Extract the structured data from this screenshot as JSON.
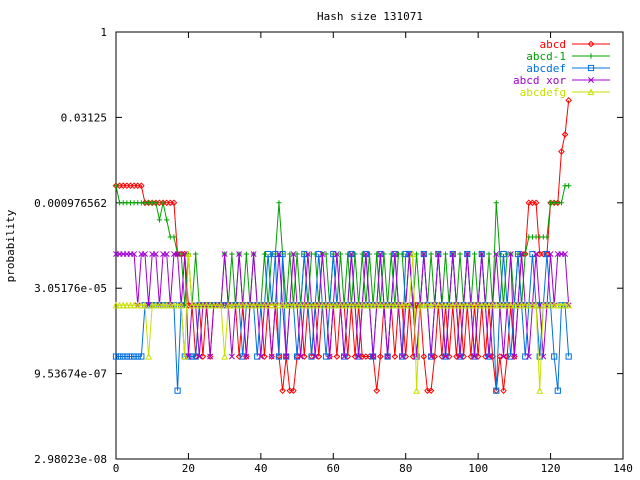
{
  "chart_data": {
    "type": "line",
    "title": "Hash size 131071",
    "xlabel": "",
    "ylabel": "probability",
    "xlim": [
      0,
      140
    ],
    "ylim_log2": [
      -25,
      0
    ],
    "y_scale": "log2",
    "xticks": [
      0,
      20,
      40,
      60,
      80,
      100,
      120,
      140
    ],
    "yticks": [
      {
        "label": "1",
        "log2": 0
      },
      {
        "label": "0.03125",
        "log2": -5
      },
      {
        "label": "0.000976562",
        "log2": -10
      },
      {
        "label": "3.05176e-05",
        "log2": -15
      },
      {
        "label": "9.53674e-07",
        "log2": -20
      },
      {
        "label": "2.98023e-08",
        "log2": -25
      }
    ],
    "grid": false,
    "legend": "top-right",
    "series": [
      {
        "name": "abcd",
        "color": "#ff0000",
        "marker": "diamond",
        "x": [
          0,
          1,
          2,
          3,
          4,
          5,
          6,
          7,
          8,
          9,
          10,
          11,
          12,
          13,
          14,
          15,
          16,
          17,
          18,
          19,
          20,
          21,
          22,
          23,
          24,
          25,
          26,
          27,
          28,
          29,
          30,
          31,
          32,
          33,
          34,
          35,
          36,
          37,
          38,
          39,
          40,
          41,
          42,
          43,
          44,
          45,
          46,
          47,
          48,
          49,
          50,
          51,
          52,
          53,
          54,
          55,
          56,
          57,
          58,
          59,
          60,
          61,
          62,
          63,
          64,
          65,
          66,
          67,
          68,
          69,
          70,
          71,
          72,
          73,
          74,
          75,
          76,
          77,
          78,
          79,
          80,
          81,
          82,
          83,
          84,
          85,
          86,
          87,
          88,
          89,
          90,
          91,
          92,
          93,
          94,
          95,
          96,
          97,
          98,
          99,
          100,
          101,
          102,
          103,
          104,
          105,
          106,
          107,
          108,
          109,
          110,
          111,
          112,
          113,
          114,
          115,
          116,
          117,
          118,
          119,
          120,
          121,
          122,
          123,
          124,
          125
        ],
        "log2": [
          -9,
          -9,
          -9,
          -9,
          -9,
          -9,
          -9,
          -9,
          -10,
          -10,
          -10,
          -10,
          -10,
          -10,
          -10,
          -10,
          -10,
          -13,
          -13,
          -13,
          -16,
          -16,
          -19,
          -16,
          -19,
          -16,
          -19,
          -16,
          -16,
          -16,
          -16,
          -16,
          -16,
          -16,
          -19,
          -16,
          -19,
          -16,
          -16,
          -16,
          -16,
          -19,
          -16,
          -19,
          -16,
          -19,
          -21,
          -19,
          -21,
          -21,
          -19,
          -16,
          -19,
          -16,
          -19,
          -16,
          -19,
          -16,
          -16,
          -19,
          -16,
          -19,
          -16,
          -16,
          -19,
          -16,
          -19,
          -16,
          -19,
          -19,
          -19,
          -19,
          -21,
          -19,
          -16,
          -19,
          -16,
          -19,
          -16,
          -16,
          -19,
          -16,
          -19,
          -16,
          -16,
          -19,
          -21,
          -21,
          -19,
          -16,
          -19,
          -16,
          -19,
          -16,
          -19,
          -16,
          -19,
          -16,
          -19,
          -16,
          -19,
          -16,
          -19,
          -16,
          -19,
          -21,
          -19,
          -21,
          -19,
          -16,
          -19,
          -16,
          -13,
          -13,
          -10,
          -10,
          -10,
          -13,
          -13,
          -13,
          -10,
          -10,
          -10,
          -7,
          -6,
          -4
        ]
      },
      {
        "name": "abcd-1",
        "color": "#00a000",
        "marker": "plus",
        "x": [
          0,
          1,
          2,
          3,
          4,
          5,
          6,
          7,
          8,
          9,
          10,
          11,
          12,
          13,
          14,
          15,
          16,
          17,
          18,
          19,
          20,
          21,
          22,
          23,
          24,
          25,
          26,
          27,
          28,
          29,
          30,
          31,
          32,
          33,
          34,
          35,
          36,
          37,
          38,
          39,
          40,
          41,
          42,
          43,
          44,
          45,
          46,
          47,
          48,
          49,
          50,
          51,
          52,
          53,
          54,
          55,
          56,
          57,
          58,
          59,
          60,
          61,
          62,
          63,
          64,
          65,
          66,
          67,
          68,
          69,
          70,
          71,
          72,
          73,
          74,
          75,
          76,
          77,
          78,
          79,
          80,
          81,
          82,
          83,
          84,
          85,
          86,
          87,
          88,
          89,
          90,
          91,
          92,
          93,
          94,
          95,
          96,
          97,
          98,
          99,
          100,
          101,
          102,
          103,
          104,
          105,
          106,
          107,
          108,
          109,
          110,
          111,
          112,
          113,
          114,
          115,
          116,
          117,
          118,
          119,
          120,
          121,
          122,
          123,
          124,
          125
        ],
        "log2": [
          -9,
          -10,
          -10,
          -10,
          -10,
          -10,
          -10,
          -10,
          -10,
          -10,
          -10,
          -10,
          -11,
          -10,
          -11,
          -12,
          -12,
          -13,
          -13,
          -16,
          -13,
          -16,
          -13,
          -16,
          -16,
          -16,
          -16,
          -16,
          -16,
          -16,
          -13,
          -16,
          -13,
          -16,
          -13,
          -16,
          -13,
          -16,
          -13,
          -16,
          -16,
          -13,
          -16,
          -13,
          -13,
          -10,
          -13,
          -16,
          -13,
          -16,
          -13,
          -16,
          -13,
          -16,
          -13,
          -13,
          -16,
          -13,
          -13,
          -16,
          -13,
          -16,
          -13,
          -16,
          -13,
          -16,
          -13,
          -16,
          -13,
          -16,
          -13,
          -16,
          -13,
          -16,
          -13,
          -16,
          -13,
          -16,
          -13,
          -13,
          -16,
          -13,
          -16,
          -13,
          -16,
          -13,
          -16,
          -13,
          -16,
          -13,
          -16,
          -13,
          -16,
          -13,
          -16,
          -13,
          -16,
          -13,
          -16,
          -13,
          -16,
          -13,
          -16,
          -13,
          -16,
          -10,
          -13,
          -16,
          -13,
          -13,
          -16,
          -13,
          -16,
          -13,
          -12,
          -12,
          -12,
          -12,
          -12,
          -12,
          -10,
          -10,
          -10,
          -10,
          -9,
          -9
        ]
      },
      {
        "name": "abcdef",
        "color": "#0070e0",
        "marker": "square",
        "x": [
          0,
          1,
          2,
          3,
          4,
          5,
          6,
          7,
          8,
          9,
          10,
          11,
          12,
          13,
          14,
          15,
          16,
          17,
          18,
          19,
          20,
          21,
          22,
          23,
          24,
          25,
          26,
          27,
          28,
          29,
          30,
          31,
          32,
          33,
          34,
          35,
          36,
          37,
          38,
          39,
          40,
          41,
          42,
          43,
          44,
          45,
          46,
          47,
          48,
          49,
          50,
          51,
          52,
          53,
          54,
          55,
          56,
          57,
          58,
          59,
          60,
          61,
          62,
          63,
          64,
          65,
          66,
          67,
          68,
          69,
          70,
          71,
          72,
          73,
          74,
          75,
          76,
          77,
          78,
          79,
          80,
          81,
          82,
          83,
          84,
          85,
          86,
          87,
          88,
          89,
          90,
          91,
          92,
          93,
          94,
          95,
          96,
          97,
          98,
          99,
          100,
          101,
          102,
          103,
          104,
          105,
          106,
          107,
          108,
          109,
          110,
          111,
          112,
          113,
          114,
          115,
          116,
          117,
          118,
          119,
          120,
          121,
          122,
          123,
          124,
          125
        ],
        "log2": [
          -19,
          -19,
          -19,
          -19,
          -19,
          -19,
          -19,
          -19,
          -16,
          -16,
          -16,
          -16,
          -16,
          -16,
          -16,
          -16,
          -16,
          -21,
          -16,
          -19,
          -19,
          -19,
          -19,
          -16,
          -16,
          -16,
          -16,
          -16,
          -16,
          -16,
          -16,
          -16,
          -16,
          -16,
          -16,
          -19,
          -16,
          -16,
          -16,
          -19,
          -16,
          -16,
          -13,
          -16,
          -13,
          -19,
          -13,
          -19,
          -16,
          -16,
          -19,
          -16,
          -13,
          -16,
          -19,
          -16,
          -13,
          -16,
          -19,
          -16,
          -13,
          -16,
          -16,
          -19,
          -16,
          -13,
          -16,
          -19,
          -16,
          -13,
          -16,
          -19,
          -16,
          -13,
          -16,
          -19,
          -16,
          -13,
          -16,
          -19,
          -13,
          -13,
          -16,
          -19,
          -16,
          -13,
          -16,
          -19,
          -16,
          -13,
          -16,
          -19,
          -16,
          -13,
          -16,
          -19,
          -16,
          -13,
          -16,
          -19,
          -16,
          -13,
          -16,
          -19,
          -16,
          -21,
          -16,
          -13,
          -16,
          -19,
          -16,
          -13,
          -16,
          -19,
          -16,
          -13,
          -16,
          -19,
          -16,
          -13,
          -16,
          -19,
          -21,
          -16,
          -16,
          -19
        ]
      },
      {
        "name": "abcd xor",
        "color": "#a000d0",
        "marker": "x",
        "x": [
          0,
          1,
          2,
          3,
          4,
          5,
          6,
          7,
          8,
          9,
          10,
          11,
          12,
          13,
          14,
          15,
          16,
          17,
          18,
          19,
          20,
          21,
          22,
          23,
          24,
          25,
          26,
          27,
          28,
          29,
          30,
          31,
          32,
          33,
          34,
          35,
          36,
          37,
          38,
          39,
          40,
          41,
          42,
          43,
          44,
          45,
          46,
          47,
          48,
          49,
          50,
          51,
          52,
          53,
          54,
          55,
          56,
          57,
          58,
          59,
          60,
          61,
          62,
          63,
          64,
          65,
          66,
          67,
          68,
          69,
          70,
          71,
          72,
          73,
          74,
          75,
          76,
          77,
          78,
          79,
          80,
          81,
          82,
          83,
          84,
          85,
          86,
          87,
          88,
          89,
          90,
          91,
          92,
          93,
          94,
          95,
          96,
          97,
          98,
          99,
          100,
          101,
          102,
          103,
          104,
          105,
          106,
          107,
          108,
          109,
          110,
          111,
          112,
          113,
          114,
          115,
          116,
          117,
          118,
          119,
          120,
          121,
          122,
          123,
          124,
          125
        ],
        "log2": [
          -13,
          -13,
          -13,
          -13,
          -13,
          -13,
          -16,
          -13,
          -13,
          -16,
          -13,
          -13,
          -16,
          -13,
          -13,
          -16,
          -13,
          -13,
          -16,
          -13,
          -19,
          -16,
          -16,
          -19,
          -16,
          -16,
          -19,
          -16,
          -16,
          -16,
          -13,
          -16,
          -19,
          -16,
          -13,
          -16,
          -19,
          -16,
          -13,
          -16,
          -19,
          -16,
          -16,
          -19,
          -16,
          -13,
          -16,
          -19,
          -16,
          -13,
          -16,
          -19,
          -16,
          -13,
          -16,
          -19,
          -16,
          -13,
          -16,
          -19,
          -16,
          -13,
          -16,
          -19,
          -16,
          -13,
          -16,
          -19,
          -16,
          -13,
          -16,
          -19,
          -16,
          -13,
          -16,
          -19,
          -16,
          -13,
          -16,
          -19,
          -16,
          -13,
          -16,
          -19,
          -16,
          -13,
          -16,
          -19,
          -16,
          -13,
          -16,
          -19,
          -16,
          -13,
          -16,
          -19,
          -16,
          -13,
          -16,
          -19,
          -16,
          -13,
          -16,
          -19,
          -16,
          -13,
          -16,
          -19,
          -16,
          -13,
          -19,
          -16,
          -13,
          -16,
          -19,
          -16,
          -13,
          -16,
          -19,
          -16,
          -13,
          -16,
          -13,
          -13,
          -13,
          -16
        ]
      },
      {
        "name": "abcdefg",
        "color": "#c8e000",
        "marker": "triangle",
        "x": [
          0,
          1,
          2,
          3,
          4,
          5,
          6,
          7,
          8,
          9,
          10,
          11,
          12,
          13,
          14,
          15,
          16,
          17,
          18,
          19,
          20,
          21,
          22,
          23,
          24,
          25,
          26,
          27,
          28,
          29,
          30,
          31,
          32,
          33,
          34,
          35,
          36,
          37,
          38,
          39,
          40,
          41,
          42,
          43,
          44,
          45,
          46,
          47,
          48,
          49,
          50,
          51,
          52,
          53,
          54,
          55,
          56,
          57,
          58,
          59,
          60,
          61,
          62,
          63,
          64,
          65,
          66,
          67,
          68,
          69,
          70,
          71,
          72,
          73,
          74,
          75,
          76,
          77,
          78,
          79,
          80,
          81,
          82,
          83,
          84,
          85,
          86,
          87,
          88,
          89,
          90,
          91,
          92,
          93,
          94,
          95,
          96,
          97,
          98,
          99,
          100,
          101,
          102,
          103,
          104,
          105,
          106,
          107,
          108,
          109,
          110,
          111,
          112,
          113,
          114,
          115,
          116,
          117,
          118,
          119,
          120,
          121,
          122,
          123,
          124,
          125
        ],
        "log2": [
          -16,
          -16,
          -16,
          -16,
          -16,
          -16,
          -16,
          -16,
          -16,
          -19,
          -16,
          -16,
          -16,
          -16,
          -16,
          -16,
          -16,
          -16,
          -16,
          -19,
          -13,
          -16,
          -16,
          -16,
          -16,
          -16,
          -16,
          -16,
          -16,
          -16,
          -19,
          -16,
          -16,
          -16,
          -16,
          -16,
          -16,
          -16,
          -16,
          -16,
          -16,
          -16,
          -16,
          -16,
          -16,
          -16,
          -16,
          -16,
          -16,
          -16,
          -16,
          -16,
          -16,
          -16,
          -16,
          -16,
          -16,
          -16,
          -16,
          -16,
          -16,
          -16,
          -16,
          -16,
          -16,
          -16,
          -16,
          -16,
          -16,
          -16,
          -16,
          -16,
          -16,
          -16,
          -16,
          -16,
          -16,
          -16,
          -16,
          -16,
          -16,
          -16,
          -13,
          -21,
          -16,
          -16,
          -16,
          -16,
          -16,
          -16,
          -16,
          -16,
          -16,
          -16,
          -16,
          -16,
          -16,
          -16,
          -16,
          -16,
          -16,
          -16,
          -16,
          -16,
          -16,
          -16,
          -16,
          -16,
          -16,
          -16,
          -16,
          -16,
          -16,
          -16,
          -16,
          -16,
          -16,
          -21,
          -16,
          -16,
          -16,
          -16,
          -16,
          -16,
          -16,
          -16
        ]
      }
    ]
  }
}
